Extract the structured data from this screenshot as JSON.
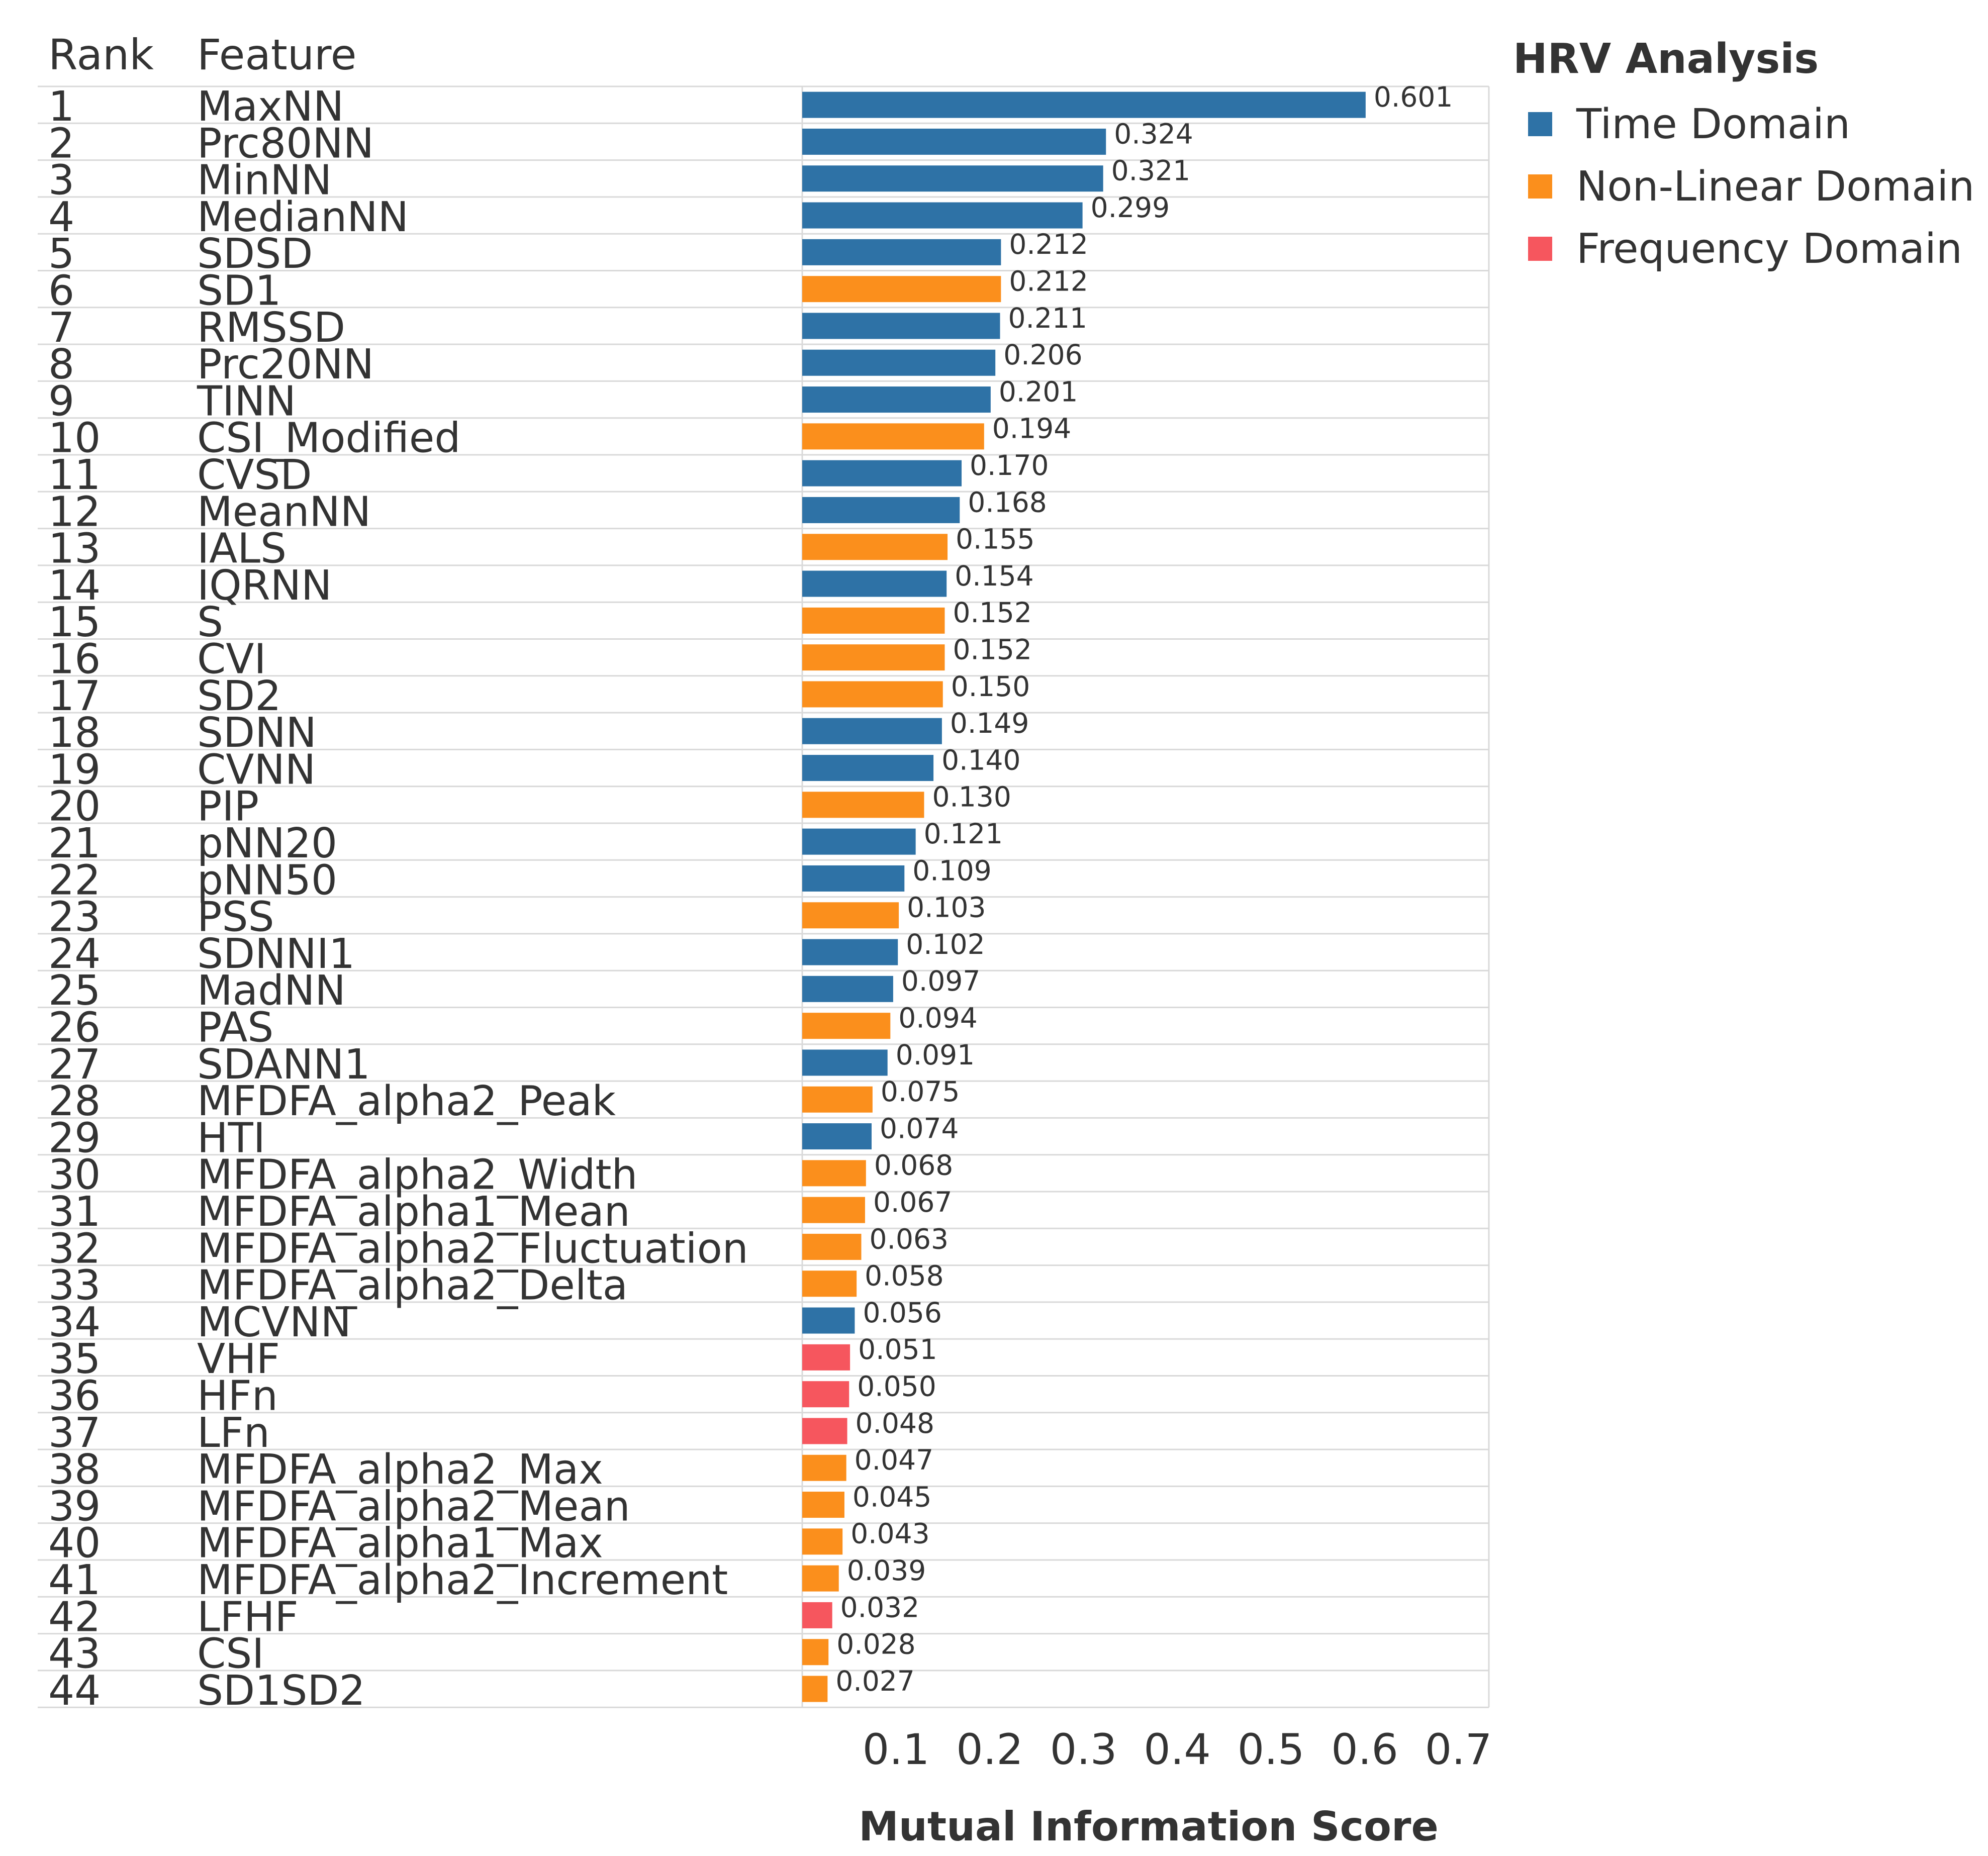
{
  "chart_data": {
    "type": "bar",
    "orientation": "horizontal",
    "headers": {
      "rank": "Rank",
      "feature": "Feature"
    },
    "xlabel": "Mutual Information Score",
    "xlim": [
      0,
      0.73
    ],
    "xticks": [
      "0.1",
      "0.2",
      "0.3",
      "0.4",
      "0.5",
      "0.6",
      "0.7"
    ],
    "legend": {
      "title": "HRV Analysis",
      "position": "top-right",
      "items": [
        {
          "key": "time",
          "label": "Time Domain",
          "color": "#2e72a6"
        },
        {
          "key": "nonlinear",
          "label": "Non-Linear Domain",
          "color": "#fb8f1c"
        },
        {
          "key": "frequency",
          "label": "Frequency Domain",
          "color": "#f6565e"
        }
      ]
    },
    "rows": [
      {
        "rank": "1",
        "feature": "MaxNN",
        "value": 0.601,
        "label": "0.601",
        "domain": "time"
      },
      {
        "rank": "2",
        "feature": "Prc80NN",
        "value": 0.324,
        "label": "0.324",
        "domain": "time"
      },
      {
        "rank": "3",
        "feature": "MinNN",
        "value": 0.321,
        "label": "0.321",
        "domain": "time"
      },
      {
        "rank": "4",
        "feature": "MedianNN",
        "value": 0.299,
        "label": "0.299",
        "domain": "time"
      },
      {
        "rank": "5",
        "feature": "SDSD",
        "value": 0.212,
        "label": "0.212",
        "domain": "time"
      },
      {
        "rank": "6",
        "feature": "SD1",
        "value": 0.212,
        "label": "0.212",
        "domain": "nonlinear"
      },
      {
        "rank": "7",
        "feature": "RMSSD",
        "value": 0.211,
        "label": "0.211",
        "domain": "time"
      },
      {
        "rank": "8",
        "feature": "Prc20NN",
        "value": 0.206,
        "label": "0.206",
        "domain": "time"
      },
      {
        "rank": "9",
        "feature": "TINN",
        "value": 0.201,
        "label": "0.201",
        "domain": "time"
      },
      {
        "rank": "10",
        "feature": "CSI_Modified",
        "value": 0.194,
        "label": "0.194",
        "domain": "nonlinear"
      },
      {
        "rank": "11",
        "feature": "CVSD",
        "value": 0.17,
        "label": "0.170",
        "domain": "time"
      },
      {
        "rank": "12",
        "feature": "MeanNN",
        "value": 0.168,
        "label": "0.168",
        "domain": "time"
      },
      {
        "rank": "13",
        "feature": "IALS",
        "value": 0.155,
        "label": "0.155",
        "domain": "nonlinear"
      },
      {
        "rank": "14",
        "feature": "IQRNN",
        "value": 0.154,
        "label": "0.154",
        "domain": "time"
      },
      {
        "rank": "15",
        "feature": "S",
        "value": 0.152,
        "label": "0.152",
        "domain": "nonlinear"
      },
      {
        "rank": "16",
        "feature": "CVI",
        "value": 0.152,
        "label": "0.152",
        "domain": "nonlinear"
      },
      {
        "rank": "17",
        "feature": "SD2",
        "value": 0.15,
        "label": "0.150",
        "domain": "nonlinear"
      },
      {
        "rank": "18",
        "feature": "SDNN",
        "value": 0.149,
        "label": "0.149",
        "domain": "time"
      },
      {
        "rank": "19",
        "feature": "CVNN",
        "value": 0.14,
        "label": "0.140",
        "domain": "time"
      },
      {
        "rank": "20",
        "feature": "PIP",
        "value": 0.13,
        "label": "0.130",
        "domain": "nonlinear"
      },
      {
        "rank": "21",
        "feature": "pNN20",
        "value": 0.121,
        "label": "0.121",
        "domain": "time"
      },
      {
        "rank": "22",
        "feature": "pNN50",
        "value": 0.109,
        "label": "0.109",
        "domain": "time"
      },
      {
        "rank": "23",
        "feature": "PSS",
        "value": 0.103,
        "label": "0.103",
        "domain": "nonlinear"
      },
      {
        "rank": "24",
        "feature": "SDNNI1",
        "value": 0.102,
        "label": "0.102",
        "domain": "time"
      },
      {
        "rank": "25",
        "feature": "MadNN",
        "value": 0.097,
        "label": "0.097",
        "domain": "time"
      },
      {
        "rank": "26",
        "feature": "PAS",
        "value": 0.094,
        "label": "0.094",
        "domain": "nonlinear"
      },
      {
        "rank": "27",
        "feature": "SDANN1",
        "value": 0.091,
        "label": "0.091",
        "domain": "time"
      },
      {
        "rank": "28",
        "feature": "MFDFA_alpha2_Peak",
        "value": 0.075,
        "label": "0.075",
        "domain": "nonlinear"
      },
      {
        "rank": "29",
        "feature": "HTI",
        "value": 0.074,
        "label": "0.074",
        "domain": "time"
      },
      {
        "rank": "30",
        "feature": "MFDFA_alpha2_Width",
        "value": 0.068,
        "label": "0.068",
        "domain": "nonlinear"
      },
      {
        "rank": "31",
        "feature": "MFDFA_alpha1_Mean",
        "value": 0.067,
        "label": "0.067",
        "domain": "nonlinear"
      },
      {
        "rank": "32",
        "feature": "MFDFA_alpha2_Fluctuation",
        "value": 0.063,
        "label": "0.063",
        "domain": "nonlinear"
      },
      {
        "rank": "33",
        "feature": "MFDFA_alpha2_Delta",
        "value": 0.058,
        "label": "0.058",
        "domain": "nonlinear"
      },
      {
        "rank": "34",
        "feature": "MCVNN",
        "value": 0.056,
        "label": "0.056",
        "domain": "time"
      },
      {
        "rank": "35",
        "feature": "VHF",
        "value": 0.051,
        "label": "0.051",
        "domain": "frequency"
      },
      {
        "rank": "36",
        "feature": "HFn",
        "value": 0.05,
        "label": "0.050",
        "domain": "frequency"
      },
      {
        "rank": "37",
        "feature": "LFn",
        "value": 0.048,
        "label": "0.048",
        "domain": "frequency"
      },
      {
        "rank": "38",
        "feature": "MFDFA_alpha2_Max",
        "value": 0.047,
        "label": "0.047",
        "domain": "nonlinear"
      },
      {
        "rank": "39",
        "feature": "MFDFA_alpha2_Mean",
        "value": 0.045,
        "label": "0.045",
        "domain": "nonlinear"
      },
      {
        "rank": "40",
        "feature": "MFDFA_alpha1_Max",
        "value": 0.043,
        "label": "0.043",
        "domain": "nonlinear"
      },
      {
        "rank": "41",
        "feature": "MFDFA_alpha2_Increment",
        "value": 0.039,
        "label": "0.039",
        "domain": "nonlinear"
      },
      {
        "rank": "42",
        "feature": "LFHF",
        "value": 0.032,
        "label": "0.032",
        "domain": "frequency"
      },
      {
        "rank": "43",
        "feature": "CSI",
        "value": 0.028,
        "label": "0.028",
        "domain": "nonlinear"
      },
      {
        "rank": "44",
        "feature": "SD1SD2",
        "value": 0.027,
        "label": "0.027",
        "domain": "nonlinear"
      }
    ]
  }
}
